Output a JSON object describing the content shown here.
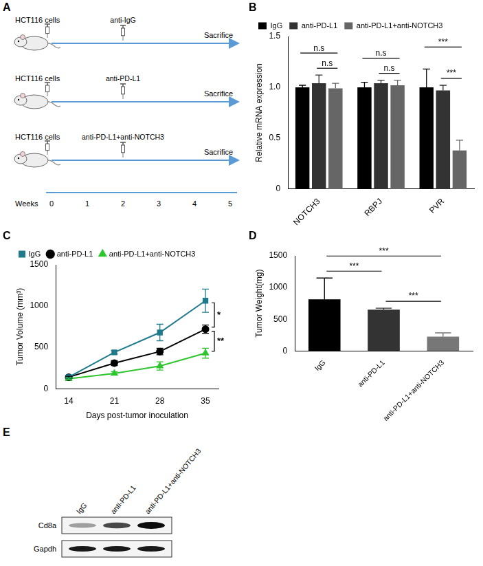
{
  "panel_labels": [
    "A",
    "B",
    "C",
    "D",
    "E"
  ],
  "diagram": {
    "rows": [
      {
        "injection": "HCT116 cells",
        "treatment": "anti-IgG",
        "end": "Sacrifice"
      },
      {
        "injection": "HCT116 cells",
        "treatment": "anti-PD-L1",
        "end": "Sacrifice"
      },
      {
        "injection": "HCT116 cells",
        "treatment": "anti-PD-L1+anti-NOTCH3",
        "end": "Sacrifice"
      }
    ],
    "timeline": {
      "label": "Weeks",
      "ticks": [
        0,
        1,
        2,
        3,
        4,
        5
      ]
    }
  },
  "chart_data": [
    {
      "type": "bar",
      "y_label": "Relative mRNA expression",
      "categories": [
        "NOTCH3",
        "RBPJ",
        "PVR"
      ],
      "series": [
        {
          "name": "IgG",
          "color": "#000000",
          "values": [
            1.0,
            1.0,
            1.0
          ],
          "errors": [
            0.02,
            0.05,
            0.18
          ]
        },
        {
          "name": "anti-PD-L1",
          "color": "#333333",
          "values": [
            1.04,
            1.04,
            0.97
          ],
          "errors": [
            0.08,
            0.03,
            0.05
          ]
        },
        {
          "name": "anti-PD-L1+anti-NOTCH3",
          "color": "#666666",
          "values": [
            0.99,
            1.02,
            0.38
          ],
          "errors": [
            0.05,
            0.05,
            0.1
          ]
        }
      ],
      "ylim": [
        0,
        1.5
      ],
      "yticks": [
        0,
        0.5,
        {
          "value": 1,
          "label": "1.0"
        },
        1.5
      ],
      "grid": false,
      "legend": "top-left",
      "annotations": [
        {
          "category": "NOTCH3",
          "from": "IgG",
          "to": "anti-PD-L1+anti-NOTCH3",
          "label": "n.s"
        },
        {
          "category": "NOTCH3",
          "from": "anti-PD-L1",
          "to": "anti-PD-L1+anti-NOTCH3",
          "label": "n.s"
        },
        {
          "category": "RBPJ",
          "from": "IgG",
          "to": "anti-PD-L1+anti-NOTCH3",
          "label": "n.s"
        },
        {
          "category": "RBPJ",
          "from": "anti-PD-L1",
          "to": "anti-PD-L1+anti-NOTCH3",
          "label": "n.s"
        },
        {
          "category": "PVR",
          "from": "IgG",
          "to": "anti-PD-L1+anti-NOTCH3",
          "label": "***"
        },
        {
          "category": "PVR",
          "from": "anti-PD-L1",
          "to": "anti-PD-L1+anti-NOTCH3",
          "label": "***"
        }
      ]
    },
    {
      "type": "line",
      "x_label": "Days post-tumor inoculation",
      "y_label": "Tumor Volume (mm³)",
      "x": [
        14,
        21,
        28,
        35
      ],
      "series": [
        {
          "name": "IgG",
          "color": "#1f7a8c",
          "marker": "square",
          "values": [
            140,
            440,
            680,
            1065
          ],
          "errors": [
            10,
            20,
            100,
            140
          ]
        },
        {
          "name": "anti-PD-L1",
          "color": "#000000",
          "marker": "circle",
          "values": [
            140,
            310,
            450,
            720
          ],
          "errors": [
            10,
            30,
            40,
            50
          ]
        },
        {
          "name": "anti-PD-L1+anti-NOTCH3",
          "color": "#2fc52f",
          "marker": "triangle",
          "values": [
            120,
            185,
            275,
            430
          ],
          "errors": [
            10,
            20,
            50,
            60
          ]
        }
      ],
      "xlim": [
        12,
        37
      ],
      "xticks": [
        14,
        21,
        28,
        35
      ],
      "ylim": [
        0,
        1500
      ],
      "yticks": [
        0,
        500,
        1000,
        1500
      ],
      "grid": false,
      "legend": "top-left",
      "annotations": [
        {
          "x": 35,
          "from": "IgG",
          "to": "anti-PD-L1",
          "label": "*"
        },
        {
          "x": 35,
          "from": "anti-PD-L1",
          "to": "anti-PD-L1+anti-NOTCH3",
          "label": "**"
        }
      ]
    },
    {
      "type": "bar",
      "y_label": "Tumor Weight(mg)",
      "categories": [
        "IgG",
        "anti-PD-L1",
        "anti-PD-L1+anti-NOTCH3"
      ],
      "values": [
        815,
        650,
        225
      ],
      "errors": [
        335,
        25,
        60
      ],
      "colors": [
        "#000000",
        "#333333",
        "#777777"
      ],
      "ylim": [
        0,
        1500
      ],
      "yticks": [
        0,
        500,
        1000,
        1500
      ],
      "grid": false,
      "annotations": [
        {
          "from": "IgG",
          "to": "anti-PD-L1",
          "label": "***"
        },
        {
          "from": "anti-PD-L1",
          "to": "anti-PD-L1+anti-NOTCH3",
          "label": "***"
        },
        {
          "from": "IgG",
          "to": "anti-PD-L1+anti-NOTCH3",
          "label": "***"
        }
      ]
    }
  ],
  "blot": {
    "lanes": [
      "IgG",
      "anti-PD-L1",
      "anti-PD-L1+anti-NOTCH3"
    ],
    "rows": [
      "Cd8a",
      "Gapdh"
    ]
  }
}
